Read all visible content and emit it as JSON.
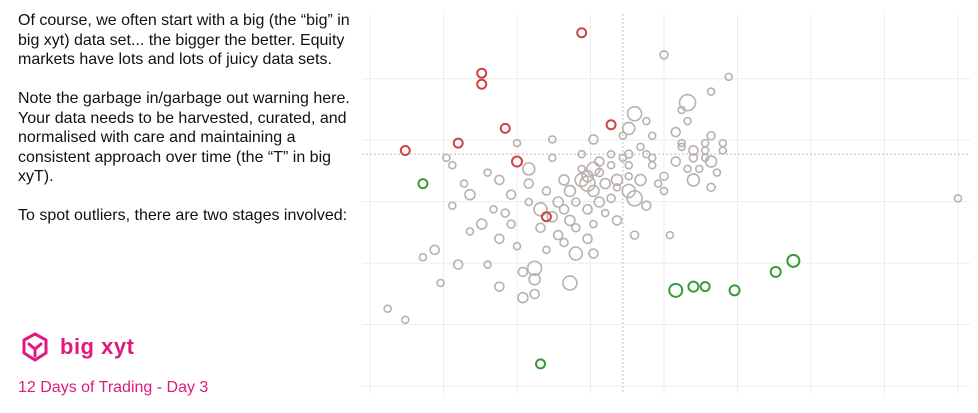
{
  "text": {
    "para1": "Of course, we often start with a big (the “big” in big xyt) data set... the bigger the better. Equity markets have lots and lots of juicy data sets.",
    "para2": "Note the garbage in/garbage out warning here. Your data needs to be harvested, curated, and normalised with care and maintaining a consistent approach over time (the “T” in big xyT).",
    "para3": "To spot outliers, there are two stages involved:"
  },
  "brand": {
    "name": "big xyt",
    "logo_icon": "big-xyt-logo-icon",
    "color": "#e0197d"
  },
  "subtitle": "12 Days of Trading - Day 3",
  "chart_data": {
    "type": "scatter",
    "title": "",
    "xlabel": "",
    "ylabel": "",
    "xlim": [
      0,
      100
    ],
    "ylim": [
      0,
      100
    ],
    "grid": true,
    "reference_lines": {
      "x": 43,
      "y": 63
    },
    "colors": {
      "neutral": "#b8b1ad",
      "high": "#cc4444",
      "low": "#3a9a3a",
      "grid": "#ececec",
      "reference": "#bdbdbd"
    },
    "series": [
      {
        "category": "neutral",
        "points": [
          [
            3,
            21,
            1.4
          ],
          [
            6,
            18,
            1.4
          ],
          [
            9,
            35,
            1.4
          ],
          [
            11,
            37,
            1.8
          ],
          [
            12,
            28,
            1.4
          ],
          [
            13,
            62,
            1.4
          ],
          [
            14,
            49,
            1.4
          ],
          [
            15,
            33,
            1.8
          ],
          [
            16,
            55,
            1.4
          ],
          [
            17,
            42,
            1.4
          ],
          [
            17,
            52,
            2
          ],
          [
            19,
            44,
            2
          ],
          [
            20,
            58,
            1.4
          ],
          [
            20,
            33,
            1.4
          ],
          [
            21,
            48,
            1.4
          ],
          [
            22,
            56,
            1.8
          ],
          [
            22,
            40,
            1.8
          ],
          [
            22,
            27,
            1.8
          ],
          [
            23,
            47,
            1.6
          ],
          [
            24,
            52,
            1.8
          ],
          [
            24,
            44,
            1.6
          ],
          [
            25,
            66,
            1.4
          ],
          [
            25,
            38,
            1.4
          ],
          [
            26,
            31,
            1.8
          ],
          [
            26,
            24,
            2
          ],
          [
            27,
            50,
            1.4
          ],
          [
            27,
            55,
            1.8
          ],
          [
            27,
            59,
            2.4
          ],
          [
            28,
            32,
            2.8
          ],
          [
            28,
            29,
            2.2
          ],
          [
            28,
            25,
            1.8
          ],
          [
            29,
            48,
            2.6
          ],
          [
            29,
            43,
            1.8
          ],
          [
            30,
            37,
            1.4
          ],
          [
            30,
            53,
            1.6
          ],
          [
            31,
            67,
            1.4
          ],
          [
            31,
            62,
            1.4
          ],
          [
            31,
            46,
            2
          ],
          [
            32,
            41,
            1.8
          ],
          [
            32,
            50,
            2
          ],
          [
            33,
            56,
            2
          ],
          [
            33,
            39,
            1.6
          ],
          [
            33,
            48,
            1.8
          ],
          [
            34,
            53,
            2.2
          ],
          [
            34,
            28,
            2.8
          ],
          [
            34,
            45,
            2
          ],
          [
            35,
            50,
            1.6
          ],
          [
            35,
            43,
            1.6
          ],
          [
            35,
            36,
            2.6
          ],
          [
            36,
            63,
            1.4
          ],
          [
            36,
            59,
            1.4
          ],
          [
            36,
            56,
            2.6
          ],
          [
            37,
            57,
            2.2
          ],
          [
            37,
            48,
            1.8
          ],
          [
            37,
            55,
            3
          ],
          [
            37,
            40,
            1.8
          ],
          [
            38,
            53,
            2.2
          ],
          [
            38,
            44,
            1.4
          ],
          [
            38,
            67,
            1.8
          ],
          [
            38,
            36,
            1.8
          ],
          [
            39,
            58,
            1.6
          ],
          [
            39,
            50,
            2
          ],
          [
            39,
            61,
            1.8
          ],
          [
            40,
            55,
            2
          ],
          [
            40,
            47,
            1.4
          ],
          [
            41,
            63,
            1.4
          ],
          [
            41,
            51,
            1.6
          ],
          [
            41,
            60,
            1.4
          ],
          [
            42,
            56,
            2.2
          ],
          [
            42,
            45,
            1.8
          ],
          [
            42,
            54,
            1.4
          ],
          [
            43,
            62,
            1.4
          ],
          [
            43,
            68,
            1.4
          ],
          [
            44,
            53,
            2.6
          ],
          [
            44,
            70,
            2.4
          ],
          [
            44,
            63,
            1.6
          ],
          [
            44,
            57,
            1.4
          ],
          [
            44,
            60,
            1.4
          ],
          [
            45,
            74,
            2.8
          ],
          [
            45,
            51,
            3
          ],
          [
            45,
            41,
            1.6
          ],
          [
            46,
            65,
            1.4
          ],
          [
            46,
            56,
            2.2
          ],
          [
            47,
            63,
            1.4
          ],
          [
            47,
            72,
            1.4
          ],
          [
            47,
            49,
            1.8
          ],
          [
            48,
            60,
            1.4
          ],
          [
            48,
            68,
            1.4
          ],
          [
            48,
            62,
            1.4
          ],
          [
            49,
            55,
            1.4
          ],
          [
            50,
            57,
            1.6
          ],
          [
            50,
            90,
            1.6
          ],
          [
            50,
            53,
            1.4
          ],
          [
            51,
            41,
            1.4
          ],
          [
            52,
            61,
            1.8
          ],
          [
            52,
            69,
            1.8
          ],
          [
            53,
            66,
            1.4
          ],
          [
            53,
            65,
            1.4
          ],
          [
            53,
            75,
            1.4
          ],
          [
            54,
            59,
            1.4
          ],
          [
            54,
            77,
            3.2
          ],
          [
            55,
            62,
            1.6
          ],
          [
            55,
            64,
            1.8
          ],
          [
            55,
            56,
            2.4
          ],
          [
            56,
            59,
            1.4
          ],
          [
            57,
            62,
            1.4
          ],
          [
            57,
            66,
            1.4
          ],
          [
            57,
            64,
            1.4
          ],
          [
            58,
            80,
            1.4
          ],
          [
            58,
            68,
            1.6
          ],
          [
            58,
            54,
            1.6
          ],
          [
            59,
            58,
            1.4
          ],
          [
            60,
            64,
            1.4
          ],
          [
            60,
            66,
            1.4
          ],
          [
            61,
            84,
            1.4
          ],
          [
            58,
            61,
            2.2
          ],
          [
            38,
            59,
            2.6
          ],
          [
            54,
            72,
            1.4
          ],
          [
            14,
            60,
            1.4
          ],
          [
            100,
            51,
            1.4
          ]
        ]
      },
      {
        "category": "high",
        "points": [
          [
            6,
            64,
            1.8
          ],
          [
            15,
            66,
            1.8
          ],
          [
            19,
            85,
            1.8
          ],
          [
            19,
            82,
            1.8
          ],
          [
            23,
            70,
            1.8
          ],
          [
            25,
            61,
            2
          ],
          [
            30,
            46,
            1.8
          ],
          [
            36,
            96,
            1.8
          ],
          [
            41,
            71,
            1.8
          ]
        ]
      },
      {
        "category": "low",
        "points": [
          [
            9,
            55,
            1.8
          ],
          [
            29,
            6,
            1.8
          ],
          [
            52,
            26,
            2.6
          ],
          [
            55,
            27,
            2
          ],
          [
            57,
            27,
            1.8
          ],
          [
            62,
            26,
            2
          ],
          [
            69,
            31,
            2
          ],
          [
            72,
            34,
            2.4
          ]
        ]
      }
    ]
  }
}
